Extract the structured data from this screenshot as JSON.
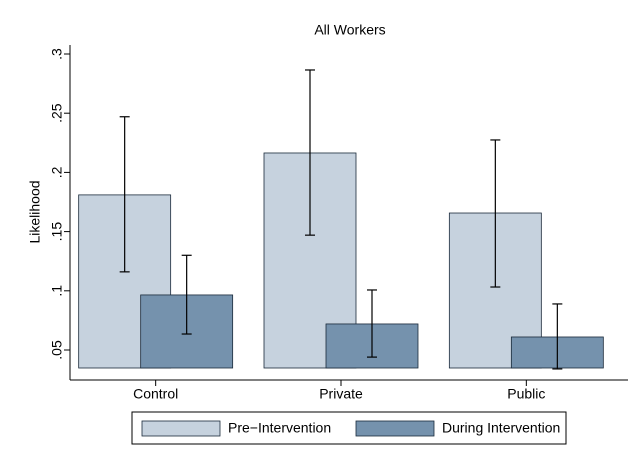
{
  "chart_data": {
    "type": "bar",
    "title": "All Workers",
    "y_label": "Likelihood",
    "categories": [
      "Control",
      "Private",
      "Public"
    ],
    "series": [
      {
        "name": "Pre−Intervention",
        "color": "#c6d2de",
        "values": [
          0.181,
          0.2164,
          0.1657
        ],
        "lower": [
          0.116,
          0.147,
          0.1032
        ],
        "upper": [
          0.247,
          0.2865,
          0.2274
        ]
      },
      {
        "name": "During Intervention",
        "color": "#7592ad",
        "values": [
          0.0965,
          0.072,
          0.061
        ],
        "lower": [
          0.0635,
          0.044,
          0.034
        ],
        "upper": [
          0.13,
          0.1007,
          0.0889
        ]
      }
    ],
    "ylim": [
      0.0348,
      0.3076
    ],
    "yticks": [
      {
        "value": 0.05,
        "label": ".05"
      },
      {
        "value": 0.1,
        "label": ".1"
      },
      {
        "value": 0.15,
        "label": ".15"
      },
      {
        "value": 0.2,
        "label": ".2"
      },
      {
        "value": 0.25,
        "label": ".25"
      },
      {
        "value": 0.3,
        "label": ".3"
      }
    ],
    "grid": false,
    "legend": "bottom"
  }
}
